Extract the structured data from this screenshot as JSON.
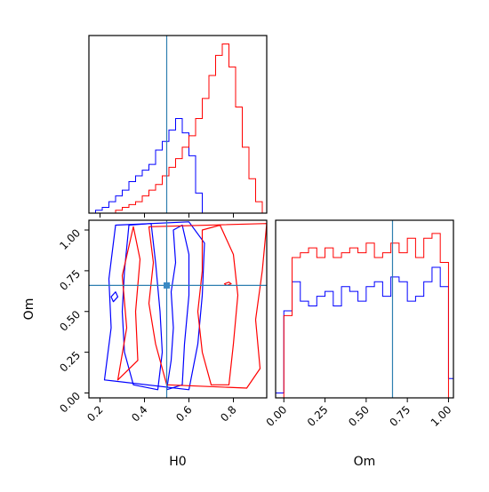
{
  "chart_data": [
    {
      "type": "histogram",
      "panel": "top-left",
      "xlabel": "",
      "xlim": [
        0.15,
        0.95
      ],
      "truth": 0.5,
      "bins": [
        0.15,
        0.18,
        0.21,
        0.24,
        0.27,
        0.3,
        0.33,
        0.36,
        0.39,
        0.42,
        0.45,
        0.48,
        0.51,
        0.54,
        0.57,
        0.6,
        0.63,
        0.66,
        0.69,
        0.72,
        0.75,
        0.78,
        0.81,
        0.84,
        0.87,
        0.9,
        0.93,
        0.95
      ],
      "series": [
        {
          "color": "#0000ff",
          "values": [
            0,
            1,
            2,
            4,
            6,
            8,
            11,
            13,
            15,
            17,
            22,
            25,
            29,
            33,
            28,
            20,
            7,
            0,
            0,
            0,
            0,
            0,
            0,
            0,
            0,
            0,
            0
          ]
        },
        {
          "color": "#ff0000",
          "values": [
            0,
            0,
            0,
            0,
            1,
            2,
            3,
            4,
            6,
            8,
            10,
            13,
            16,
            19,
            23,
            27,
            33,
            40,
            48,
            55,
            59,
            51,
            37,
            23,
            12,
            4,
            0
          ]
        }
      ]
    },
    {
      "type": "contour",
      "panel": "bottom-left",
      "xlabel": "H0",
      "ylabel": "Om",
      "xlim": [
        0.15,
        0.95
      ],
      "ylim": [
        -0.03,
        1.06
      ],
      "xticks": [
        "0.2",
        "0.4",
        "0.6",
        "0.8"
      ],
      "yticks": [
        "0.00",
        "0.25",
        "0.50",
        "0.75",
        "1.00"
      ],
      "truth": {
        "x": 0.5,
        "y": 0.66
      },
      "series": [
        {
          "color": "#0000ff",
          "contours": [
            [
              [
                0.5,
                0.02
              ],
              [
                0.52,
                0.2
              ],
              [
                0.53,
                0.4
              ],
              [
                0.52,
                0.62
              ],
              [
                0.54,
                0.8
              ],
              [
                0.53,
                1.0
              ],
              [
                0.57,
                1.03
              ],
              [
                0.6,
                0.85
              ],
              [
                0.6,
                0.6
              ],
              [
                0.58,
                0.3
              ],
              [
                0.57,
                0.05
              ]
            ],
            [
              [
                0.35,
                0.05
              ],
              [
                0.31,
                0.25
              ],
              [
                0.3,
                0.5
              ],
              [
                0.31,
                0.75
              ],
              [
                0.33,
                1.03
              ],
              [
                0.43,
                1.04
              ],
              [
                0.45,
                0.8
              ],
              [
                0.47,
                0.5
              ],
              [
                0.48,
                0.25
              ],
              [
                0.46,
                0.02
              ]
            ],
            [
              [
                0.22,
                0.08
              ],
              [
                0.25,
                0.4
              ],
              [
                0.24,
                0.7
              ],
              [
                0.27,
                1.03
              ],
              [
                0.6,
                1.05
              ],
              [
                0.67,
                0.92
              ],
              [
                0.66,
                0.6
              ],
              [
                0.64,
                0.3
              ],
              [
                0.6,
                0.02
              ]
            ],
            [
              [
                0.26,
                0.56
              ],
              [
                0.25,
                0.59
              ],
              [
                0.27,
                0.62
              ],
              [
                0.28,
                0.59
              ]
            ]
          ]
        },
        {
          "color": "#ff0000",
          "contours": [
            [
              [
                0.7,
                0.05
              ],
              [
                0.66,
                0.25
              ],
              [
                0.64,
                0.5
              ],
              [
                0.66,
                0.75
              ],
              [
                0.66,
                1.0
              ],
              [
                0.74,
                1.03
              ],
              [
                0.8,
                0.85
              ],
              [
                0.82,
                0.6
              ],
              [
                0.8,
                0.3
              ],
              [
                0.78,
                0.05
              ]
            ],
            [
              [
                0.5,
                0.05
              ],
              [
                0.45,
                0.3
              ],
              [
                0.42,
                0.55
              ],
              [
                0.44,
                0.8
              ],
              [
                0.42,
                1.02
              ],
              [
                0.95,
                1.04
              ],
              [
                0.93,
                0.75
              ],
              [
                0.9,
                0.45
              ],
              [
                0.92,
                0.15
              ],
              [
                0.86,
                0.03
              ]
            ],
            [
              [
                0.28,
                0.08
              ],
              [
                0.32,
                0.4
              ],
              [
                0.3,
                0.72
              ],
              [
                0.35,
                1.02
              ],
              [
                0.38,
                0.82
              ],
              [
                0.36,
                0.5
              ],
              [
                0.37,
                0.2
              ]
            ],
            [
              [
                0.77,
                0.66
              ],
              [
                0.76,
                0.67
              ],
              [
                0.78,
                0.68
              ],
              [
                0.79,
                0.67
              ]
            ]
          ]
        }
      ]
    },
    {
      "type": "histogram",
      "panel": "bottom-right",
      "xlabel": "Om",
      "xlim": [
        -0.05,
        1.03
      ],
      "xticks": [
        "0.00",
        "0.25",
        "0.50",
        "0.75",
        "1.00"
      ],
      "truth": 0.66,
      "bins": [
        -0.05,
        0.0,
        0.05,
        0.1,
        0.15,
        0.2,
        0.25,
        0.3,
        0.35,
        0.4,
        0.45,
        0.5,
        0.55,
        0.6,
        0.65,
        0.7,
        0.75,
        0.8,
        0.85,
        0.9,
        0.95,
        1.0,
        1.03
      ],
      "series": [
        {
          "color": "#0000ff",
          "values": [
            1,
            18,
            24,
            20,
            19,
            21,
            22,
            19,
            23,
            22,
            20,
            23,
            24,
            21,
            25,
            24,
            20,
            21,
            24,
            27,
            23,
            4
          ]
        },
        {
          "color": "#ff0000",
          "values": [
            0,
            17,
            29,
            30,
            31,
            29,
            31,
            29,
            30,
            31,
            30,
            32,
            29,
            30,
            32,
            30,
            33,
            29,
            33,
            34,
            28,
            0
          ]
        }
      ]
    }
  ]
}
